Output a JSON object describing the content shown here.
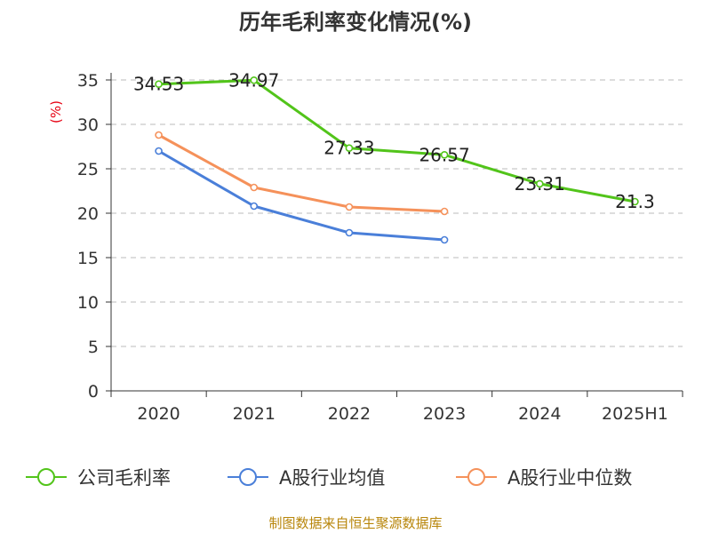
{
  "chart_data": {
    "type": "line",
    "title": "历年毛利率变化情况(%)",
    "ylabel": "(%)",
    "xlabel": "",
    "categories": [
      "2020",
      "2021",
      "2022",
      "2023",
      "2024",
      "2025H1"
    ],
    "ylim": [
      0,
      35
    ],
    "yticks": [
      0,
      5,
      10,
      15,
      20,
      25,
      30,
      35
    ],
    "grid": true,
    "legend_position": "bottom",
    "series": [
      {
        "name": "公司毛利率",
        "color": "#52c41a",
        "values": [
          34.53,
          34.97,
          27.33,
          26.57,
          23.31,
          21.3
        ],
        "labels": [
          "34.53",
          "34.97",
          "27.33",
          "26.57",
          "23.31",
          "21.3"
        ]
      },
      {
        "name": "A股行业均值",
        "color": "#4a7fd9",
        "values": [
          27.0,
          20.8,
          17.8,
          17.0,
          null,
          null
        ]
      },
      {
        "name": "A股行业中位数",
        "color": "#f5915a",
        "values": [
          28.8,
          22.9,
          20.7,
          20.2,
          null,
          null
        ]
      }
    ]
  },
  "source": "制图数据来自恒生聚源数据库"
}
